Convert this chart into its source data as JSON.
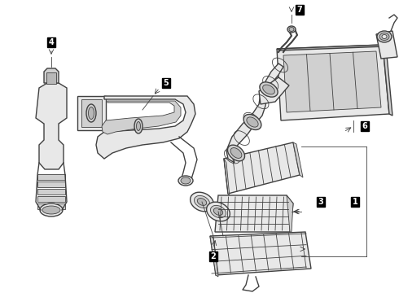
{
  "background_color": "#ffffff",
  "line_color": "#404040",
  "fill_light": "#e8e8e8",
  "fill_mid": "#d0d0d0",
  "fill_dark": "#b8b8b8",
  "figsize": [
    4.9,
    3.6
  ],
  "dpi": 100,
  "label_bg": "#000000",
  "label_fg": "#ffffff",
  "label_fontsize": 7,
  "lw_main": 1.0,
  "lw_thin": 0.6
}
